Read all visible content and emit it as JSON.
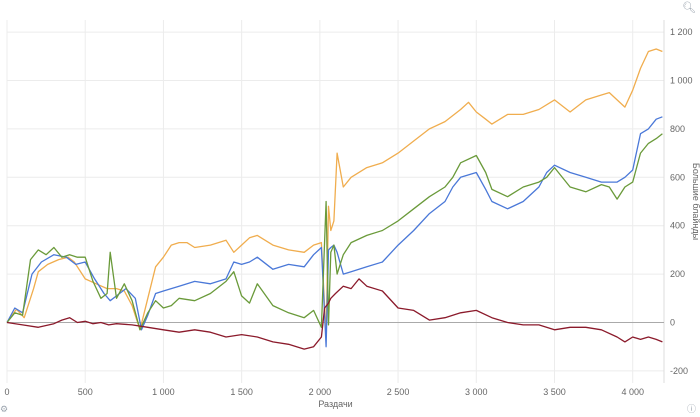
{
  "chart_data": {
    "type": "line",
    "title": "",
    "xlabel": "Раздачи",
    "ylabel": "Большие блайнды",
    "xlim": [
      0,
      4200
    ],
    "ylim": [
      -250,
      1250
    ],
    "x_ticks": [
      0,
      500,
      1000,
      1500,
      2000,
      2500,
      3000,
      3500,
      4000
    ],
    "x_tick_labels": [
      "0",
      "500",
      "1 000",
      "1 500",
      "2 000",
      "2 500",
      "3 000",
      "3 500",
      "4 000"
    ],
    "y_ticks": [
      -200,
      0,
      200,
      400,
      600,
      800,
      1000,
      1200
    ],
    "y_tick_labels": [
      "-200",
      "0",
      "200",
      "400",
      "600",
      "800",
      "1 000",
      "1 200"
    ],
    "grid": true,
    "legend": "none",
    "series": [
      {
        "color": "#f0ad4e",
        "x": [
          0,
          60,
          110,
          170,
          200,
          260,
          330,
          390,
          430,
          500,
          570,
          640,
          700,
          750,
          800,
          850,
          900,
          950,
          1000,
          1050,
          1100,
          1150,
          1200,
          1300,
          1400,
          1450,
          1500,
          1550,
          1600,
          1700,
          1800,
          1900,
          1960,
          2010,
          2040,
          2055,
          2070,
          2090,
          2110,
          2150,
          2200,
          2300,
          2400,
          2500,
          2600,
          2700,
          2800,
          2900,
          2950,
          3000,
          3060,
          3100,
          3200,
          3300,
          3400,
          3500,
          3600,
          3700,
          3800,
          3850,
          3900,
          3950,
          4000,
          4050,
          4100,
          4150,
          4190
        ],
        "y": [
          0,
          55,
          20,
          140,
          210,
          240,
          260,
          270,
          250,
          180,
          160,
          140,
          140,
          130,
          70,
          -30,
          100,
          230,
          270,
          320,
          330,
          330,
          310,
          320,
          340,
          290,
          320,
          350,
          360,
          320,
          300,
          290,
          320,
          330,
          -60,
          480,
          380,
          420,
          700,
          560,
          600,
          640,
          660,
          700,
          750,
          800,
          830,
          880,
          910,
          870,
          840,
          820,
          860,
          860,
          880,
          920,
          870,
          920,
          940,
          950,
          920,
          890,
          960,
          1050,
          1120,
          1130,
          1120
        ]
      },
      {
        "color": "#4a78d8",
        "x": [
          0,
          50,
          100,
          160,
          220,
          300,
          380,
          440,
          500,
          560,
          620,
          660,
          700,
          760,
          820,
          860,
          900,
          950,
          1000,
          1100,
          1200,
          1300,
          1400,
          1450,
          1500,
          1550,
          1600,
          1700,
          1800,
          1900,
          1960,
          2010,
          2040,
          2055,
          2070,
          2090,
          2110,
          2150,
          2200,
          2300,
          2400,
          2500,
          2600,
          2700,
          2800,
          2850,
          2900,
          3000,
          3060,
          3100,
          3200,
          3300,
          3400,
          3450,
          3500,
          3600,
          3700,
          3800,
          3850,
          3900,
          3950,
          4000,
          4050,
          4100,
          4150,
          4190
        ],
        "y": [
          0,
          60,
          40,
          200,
          250,
          280,
          270,
          240,
          250,
          180,
          120,
          90,
          110,
          140,
          100,
          -30,
          30,
          120,
          130,
          150,
          170,
          160,
          180,
          250,
          240,
          250,
          270,
          220,
          240,
          230,
          280,
          310,
          -100,
          300,
          310,
          320,
          290,
          200,
          210,
          230,
          250,
          320,
          380,
          450,
          500,
          560,
          600,
          620,
          550,
          500,
          470,
          500,
          560,
          620,
          650,
          620,
          600,
          580,
          580,
          580,
          600,
          630,
          780,
          800,
          840,
          850
        ]
      },
      {
        "color": "#6a9a3a",
        "x": [
          0,
          50,
          100,
          150,
          200,
          250,
          300,
          350,
          400,
          450,
          500,
          550,
          600,
          640,
          660,
          700,
          750,
          800,
          850,
          900,
          950,
          1000,
          1050,
          1100,
          1200,
          1300,
          1400,
          1450,
          1500,
          1550,
          1600,
          1700,
          1800,
          1900,
          1960,
          2010,
          2040,
          2055,
          2070,
          2090,
          2110,
          2150,
          2200,
          2300,
          2400,
          2500,
          2600,
          2700,
          2800,
          2850,
          2900,
          3000,
          3060,
          3100,
          3200,
          3300,
          3400,
          3450,
          3500,
          3600,
          3700,
          3800,
          3850,
          3900,
          3950,
          4000,
          4050,
          4100,
          4150,
          4190
        ],
        "y": [
          0,
          40,
          30,
          260,
          300,
          280,
          310,
          270,
          280,
          270,
          270,
          170,
          100,
          120,
          290,
          100,
          160,
          90,
          -30,
          40,
          90,
          60,
          70,
          100,
          90,
          120,
          170,
          210,
          110,
          80,
          160,
          70,
          40,
          20,
          50,
          -20,
          500,
          -10,
          290,
          320,
          200,
          280,
          330,
          360,
          380,
          420,
          470,
          520,
          560,
          600,
          660,
          690,
          620,
          550,
          520,
          560,
          580,
          600,
          640,
          560,
          540,
          570,
          560,
          510,
          560,
          580,
          700,
          740,
          760,
          780
        ]
      },
      {
        "color": "#8b1a2b",
        "x": [
          0,
          100,
          200,
          300,
          350,
          400,
          450,
          500,
          550,
          600,
          650,
          700,
          800,
          900,
          1000,
          1100,
          1200,
          1300,
          1400,
          1500,
          1600,
          1700,
          1800,
          1900,
          1960,
          2010,
          2030,
          2055,
          2070,
          2100,
          2150,
          2200,
          2250,
          2300,
          2400,
          2500,
          2600,
          2700,
          2800,
          2900,
          3000,
          3100,
          3200,
          3300,
          3400,
          3500,
          3600,
          3700,
          3800,
          3900,
          3950,
          4000,
          4050,
          4100,
          4150,
          4190
        ],
        "y": [
          0,
          -10,
          -20,
          -5,
          10,
          20,
          0,
          5,
          -5,
          0,
          -10,
          -5,
          -10,
          -20,
          -30,
          -40,
          -30,
          -40,
          -60,
          -50,
          -60,
          -80,
          -90,
          -110,
          -100,
          -60,
          60,
          80,
          100,
          120,
          150,
          140,
          180,
          150,
          130,
          60,
          50,
          10,
          20,
          40,
          50,
          20,
          0,
          -10,
          -10,
          -30,
          -20,
          -20,
          -30,
          -60,
          -80,
          -60,
          -70,
          -60,
          -70,
          -80
        ]
      }
    ]
  }
}
